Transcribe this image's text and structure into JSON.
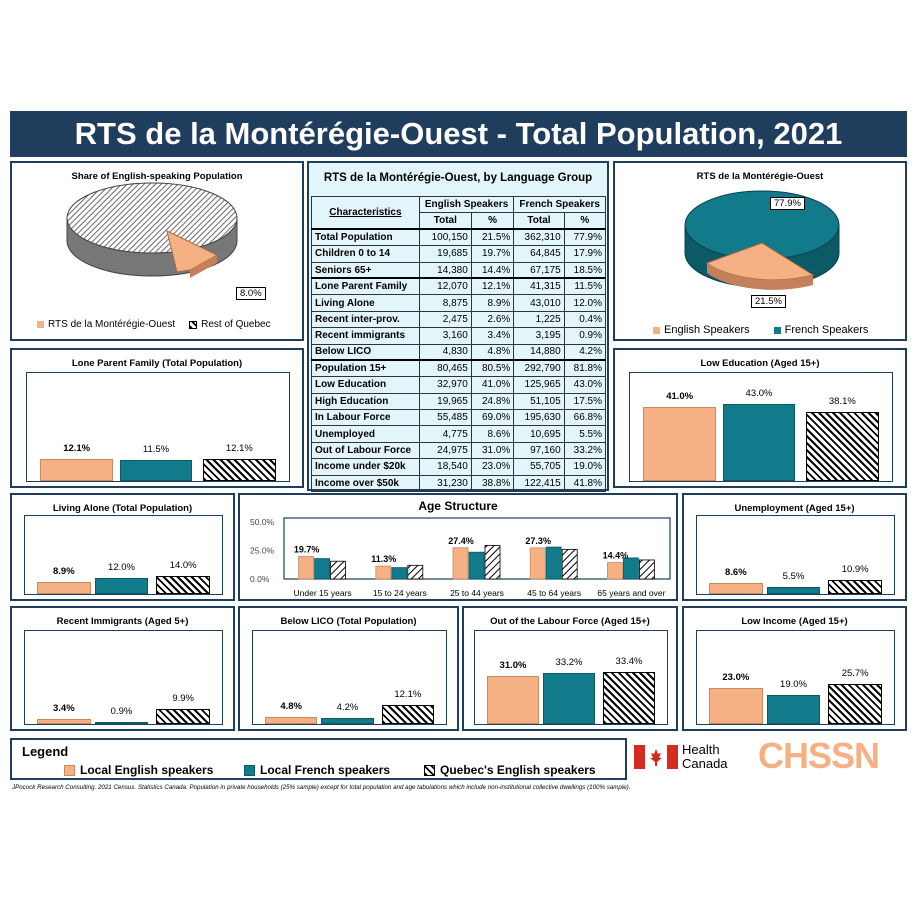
{
  "title": "RTS de la Montérégie-Ouest - Total Population, 2021",
  "colors": {
    "english": "#f5b183",
    "french": "#117a8b",
    "quebec_pattern": "#000000",
    "header": "#1f3d5c",
    "table_bg": "#e2f5fa"
  },
  "share_pie": {
    "title": "Share of English-speaking Population",
    "label": "8.0%",
    "legend": [
      "RTS de la Montérégie-Ouest",
      "Rest of Quebec"
    ]
  },
  "lang_pie": {
    "title": "RTS de la Montérégie-Ouest",
    "label_french": "77.9%",
    "label_english": "21.5%",
    "legend": [
      "English Speakers",
      "French Speakers"
    ]
  },
  "table": {
    "title": "RTS de la Montérégie-Ouest, by Language Group",
    "characteristics_label": "Characteristics",
    "english_label": "English Speakers",
    "french_label": "French Speakers",
    "total_label": "Total",
    "pct_label": "%",
    "rows": [
      [
        "Total Population",
        "100,150",
        "21.5%",
        "362,310",
        "77.9%"
      ],
      [
        "Children 0 to 14",
        "19,685",
        "19.7%",
        "64,845",
        "17.9%"
      ],
      [
        "Seniors 65+",
        "14,380",
        "14.4%",
        "67,175",
        "18.5%"
      ],
      [
        "Lone Parent Family",
        "12,070",
        "12.1%",
        "41,315",
        "11.5%"
      ],
      [
        "Living Alone",
        "8,875",
        "8.9%",
        "43,010",
        "12.0%"
      ],
      [
        "Recent inter-prov.",
        "2,475",
        "2.6%",
        "1,225",
        "0.4%"
      ],
      [
        "Recent immigrants",
        "3,160",
        "3.4%",
        "3,195",
        "0.9%"
      ],
      [
        "Below LICO",
        "4,830",
        "4.8%",
        "14,880",
        "4.2%"
      ],
      [
        "Population 15+",
        "80,465",
        "80.5%",
        "292,790",
        "81.8%"
      ],
      [
        "Low Education",
        "32,970",
        "41.0%",
        "125,965",
        "43.0%"
      ],
      [
        "High Education",
        "19,965",
        "24.8%",
        "51,105",
        "17.5%"
      ],
      [
        "In Labour Force",
        "55,485",
        "69.0%",
        "195,630",
        "66.8%"
      ],
      [
        "Unemployed",
        "4,775",
        "8.6%",
        "10,695",
        "5.5%"
      ],
      [
        "Out of Labour Force",
        "24,975",
        "31.0%",
        "97,160",
        "33.2%"
      ],
      [
        "Income under $20k",
        "18,540",
        "23.0%",
        "55,705",
        "19.0%"
      ],
      [
        "Income over $50k",
        "31,230",
        "38.8%",
        "122,415",
        "41.8%"
      ]
    ]
  },
  "chart_data": [
    {
      "type": "pie",
      "title": "Share of English-speaking Population",
      "categories": [
        "RTS de la Montérégie-Ouest",
        "Rest of Quebec"
      ],
      "values": [
        8.0,
        92.0
      ]
    },
    {
      "type": "pie",
      "title": "RTS de la Montérégie-Ouest",
      "categories": [
        "English Speakers",
        "French Speakers"
      ],
      "values": [
        21.5,
        77.9
      ]
    },
    {
      "type": "bar",
      "id": "lone",
      "title": "Lone Parent Family (Total Population)",
      "values": [
        12.1,
        11.5,
        12.1
      ],
      "labels": [
        "12.1%",
        "11.5%",
        "12.1%"
      ],
      "ymax": 60
    },
    {
      "type": "bar",
      "id": "lowedu",
      "title": "Low Education (Aged 15+)",
      "values": [
        41.0,
        43.0,
        38.1
      ],
      "labels": [
        "41.0%",
        "43.0%",
        "38.1%"
      ],
      "ymax": 60
    },
    {
      "type": "bar",
      "id": "alone",
      "title": "Living Alone (Total Population)",
      "values": [
        8.9,
        12.0,
        14.0
      ],
      "labels": [
        "8.9%",
        "12.0%",
        "14.0%"
      ],
      "ymax": 60
    },
    {
      "type": "bar",
      "id": "unemp",
      "title": "Unemployment (Aged 15+)",
      "values": [
        8.6,
        5.5,
        10.9
      ],
      "labels": [
        "8.6%",
        "5.5%",
        "10.9%"
      ],
      "ymax": 60
    },
    {
      "type": "bar",
      "id": "immig",
      "title": "Recent Immigrants (Aged 5+)",
      "values": [
        3.4,
        0.9,
        9.9
      ],
      "labels": [
        "3.4%",
        "0.9%",
        "9.9%"
      ],
      "ymax": 60
    },
    {
      "type": "bar",
      "id": "lico",
      "title": "Below LICO (Total Population)",
      "values": [
        4.8,
        4.2,
        12.1
      ],
      "labels": [
        "4.8%",
        "4.2%",
        "12.1%"
      ],
      "ymax": 60
    },
    {
      "type": "bar",
      "id": "olf",
      "title": "Out of the Labour Force (Aged 15+)",
      "values": [
        31.0,
        33.2,
        33.4
      ],
      "labels": [
        "31.0%",
        "33.2%",
        "33.4%"
      ],
      "ymax": 60
    },
    {
      "type": "bar",
      "id": "lowinc",
      "title": "Low Income (Aged 15+)",
      "values": [
        23.0,
        19.0,
        25.7
      ],
      "labels": [
        "23.0%",
        "19.0%",
        "25.7%"
      ],
      "ymax": 60
    },
    {
      "type": "bar",
      "id": "age",
      "title": "Age Structure",
      "categories": [
        "Under 15 years",
        "15 to 24 years",
        "25 to 44 years",
        "45 to 64 years",
        "65 years and over"
      ],
      "series": [
        {
          "name": "Local English speakers",
          "values": [
            19.7,
            11.3,
            27.4,
            27.3,
            14.4
          ]
        },
        {
          "name": "Local French speakers",
          "values": [
            17.9,
            10.0,
            23.5,
            28.0,
            18.5
          ]
        },
        {
          "name": "Quebec's English speakers",
          "values": [
            15.6,
            12.0,
            29.5,
            26.0,
            16.7
          ]
        }
      ],
      "labels": [
        "19.7%",
        "11.3%",
        "27.4%",
        "27.3%",
        "14.4%"
      ],
      "yticks": [
        "50.0%",
        "25.0%",
        "0.0%"
      ],
      "ylim": [
        0,
        50
      ]
    }
  ],
  "legend": {
    "title": "Legend",
    "items": [
      "Local English speakers",
      "Local French speakers",
      "Quebec's English speakers"
    ]
  },
  "logos": {
    "health_canada_line1": "Health",
    "health_canada_line2": "Canada",
    "chssn": "CHSSN"
  },
  "footer": "JPocock Research Consulting. 2021 Census. Statistics Canada. Population in private households (25% sample) except for total population and age tabulations which include non-institutional collective dwellings (100% sample)."
}
